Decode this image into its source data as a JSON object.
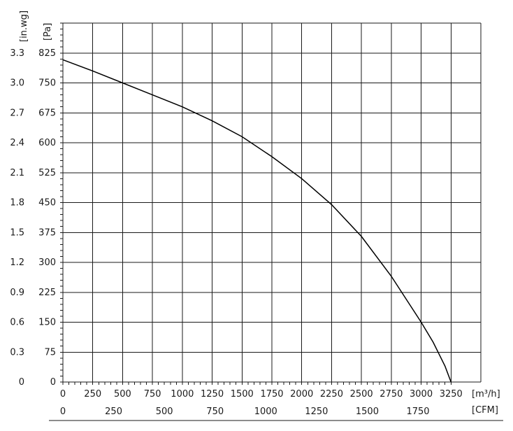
{
  "chart_data": {
    "type": "line",
    "title": "",
    "y_axes": [
      {
        "unit": "[in.wg]",
        "ticks": [
          "0",
          "0.3",
          "0.6",
          "0.9",
          "1.2",
          "1.5",
          "1.8",
          "2.1",
          "2.4",
          "2.7",
          "3.0",
          "3.3"
        ],
        "values": [
          0,
          0.3,
          0.6,
          0.9,
          1.2,
          1.5,
          1.8,
          2.1,
          2.4,
          2.7,
          3.0,
          3.3
        ]
      },
      {
        "unit": "[Pa]",
        "ticks": [
          "0",
          "75",
          "150",
          "225",
          "300",
          "375",
          "450",
          "525",
          "600",
          "675",
          "750",
          "825"
        ],
        "values": [
          0,
          75,
          150,
          225,
          300,
          375,
          450,
          525,
          600,
          675,
          750,
          825
        ]
      }
    ],
    "x_axes": [
      {
        "unit": "[m³/h]",
        "ticks": [
          "0",
          "250",
          "500",
          "750",
          "1000",
          "1250",
          "1500",
          "1750",
          "2000",
          "2250",
          "2500",
          "2750",
          "3000",
          "3250"
        ],
        "values": [
          0,
          250,
          500,
          750,
          1000,
          1250,
          1500,
          1750,
          2000,
          2250,
          2500,
          2750,
          3000,
          3250
        ]
      },
      {
        "unit": "[CFM]",
        "ticks": [
          "0",
          "250",
          "500",
          "750",
          "1000",
          "1250",
          "1500",
          "1750"
        ],
        "values": [
          0,
          250,
          500,
          750,
          1000,
          1250,
          1500,
          1750
        ]
      }
    ],
    "xlim": [
      0,
      3500
    ],
    "ylim": [
      0,
      900
    ],
    "grid": true,
    "series": [
      {
        "x": [
          0,
          250,
          500,
          750,
          1000,
          1250,
          1500,
          1750,
          2000,
          2250,
          2500,
          2750,
          3000,
          3100,
          3200,
          3250
        ],
        "y": [
          808,
          780,
          750,
          720,
          690,
          655,
          615,
          565,
          510,
          445,
          365,
          265,
          150,
          100,
          40,
          0
        ],
        "color": "#000000"
      }
    ]
  }
}
